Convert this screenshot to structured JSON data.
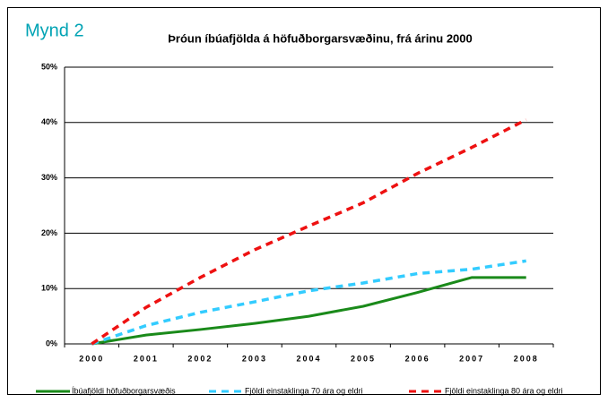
{
  "chart_data": {
    "type": "line",
    "label": "Mynd 2",
    "title": "Þróun íbúafjölda á höfuðborgarsvæðinu, frá  árinu 2000",
    "categories": [
      "2000",
      "2001",
      "2002",
      "2003",
      "2004",
      "2005",
      "2006",
      "2007",
      "2008"
    ],
    "series": [
      {
        "name": "Íbúafjöldi höfuðborgarsvæðis",
        "color": "#1a8a1a",
        "dash": "solid",
        "values": [
          0,
          1.6,
          2.6,
          3.7,
          5.0,
          6.8,
          9.3,
          12.0,
          12.0
        ]
      },
      {
        "name": "Fjöldi einstaklinga 70 ára og eldri",
        "color": "#33ccff",
        "dash": "dashed",
        "values": [
          0,
          3.3,
          5.7,
          7.6,
          9.6,
          11.0,
          12.7,
          13.5,
          15.0
        ]
      },
      {
        "name": "Fjöldi einstaklinga 80 ára og eldri",
        "color": "#ee1111",
        "dash": "dashed",
        "values": [
          0,
          6.6,
          12.0,
          17.0,
          21.3,
          25.5,
          30.8,
          35.5,
          40.5
        ]
      }
    ],
    "ylim": [
      0,
      50
    ],
    "yticks": [
      {
        "value": 0,
        "label": "0%"
      },
      {
        "value": 10,
        "label": "10%"
      },
      {
        "value": 20,
        "label": "20%"
      },
      {
        "value": 30,
        "label": "30%"
      },
      {
        "value": 40,
        "label": "40%"
      },
      {
        "value": 50,
        "label": "50%"
      }
    ],
    "grid": true,
    "legend": "bottom"
  }
}
